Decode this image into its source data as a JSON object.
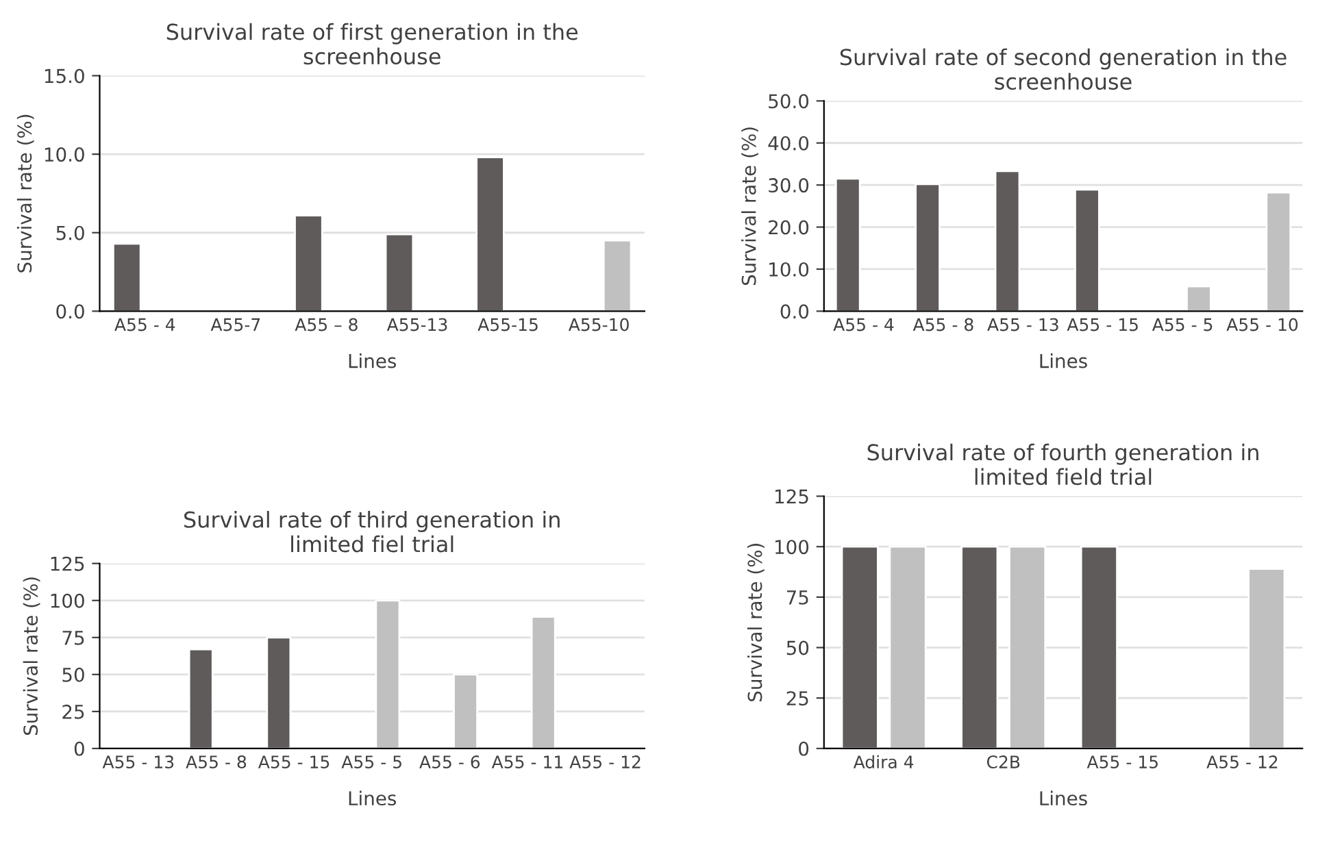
{
  "chart_data": [
    {
      "type": "bar",
      "title": "Survival rate of first generation in the\nscreenhouse",
      "xlabel": "Lines",
      "ylabel": "Survival rate (%)",
      "categories": [
        "A55 - 4",
        "A55-7",
        "A55 – 8",
        "A55-13",
        "A55-15",
        "A55-10"
      ],
      "series": [
        {
          "color": "#5f5b5b",
          "values": [
            4.3,
            null,
            6.1,
            4.9,
            9.8,
            null
          ]
        },
        {
          "color": "#c0c0c0",
          "values": [
            null,
            null,
            null,
            null,
            null,
            4.5
          ]
        }
      ],
      "ylim": [
        0,
        15
      ],
      "yticks": [
        {
          "value": 0,
          "label": "0.0"
        },
        {
          "value": 5,
          "label": "5.0"
        },
        {
          "value": 10,
          "label": "10.0"
        },
        {
          "value": 15,
          "label": "15.0"
        }
      ],
      "grid": "y"
    },
    {
      "type": "bar",
      "title": "Survival rate of second generation in the\nscreenhouse",
      "xlabel": "Lines",
      "ylabel": "Survival rate (%)",
      "categories": [
        "A55 - 4",
        "A55 - 8",
        "A55 - 13",
        "A55 - 15",
        "A55 - 5",
        "A55 - 10"
      ],
      "series": [
        {
          "color": "#5f5b5b",
          "values": [
            31.5,
            30.2,
            33.3,
            28.9,
            null,
            null
          ]
        },
        {
          "color": "#c0c0c0",
          "values": [
            null,
            null,
            null,
            null,
            5.9,
            28.2
          ]
        }
      ],
      "ylim": [
        0,
        50
      ],
      "yticks": [
        {
          "value": 0,
          "label": "0.0"
        },
        {
          "value": 10,
          "label": "10.0"
        },
        {
          "value": 20,
          "label": "20.0"
        },
        {
          "value": 30,
          "label": "30.0"
        },
        {
          "value": 40,
          "label": "40.0"
        },
        {
          "value": 50,
          "label": "50.0"
        }
      ],
      "grid": "y"
    },
    {
      "type": "bar",
      "title": "Survival rate of third generation in\nlimited fiel trial",
      "xlabel": "Lines",
      "ylabel": "Survival rate (%)",
      "categories": [
        "A55 - 13",
        "A55 - 8",
        "A55 - 15",
        "A55 - 5",
        "A55 - 6",
        "A55 - 11",
        "A55 - 12"
      ],
      "series": [
        {
          "color": "#5f5b5b",
          "values": [
            null,
            67,
            75,
            null,
            null,
            null,
            null
          ]
        },
        {
          "color": "#c0c0c0",
          "values": [
            null,
            null,
            null,
            100,
            50,
            89,
            null
          ]
        }
      ],
      "ylim": [
        0,
        125
      ],
      "yticks": [
        0,
        25,
        50,
        75,
        100,
        125
      ],
      "grid": "y"
    },
    {
      "type": "bar",
      "title": "Survival rate of fourth generation in\nlimited field trial",
      "xlabel": "Lines",
      "ylabel": "Survival rate (%)",
      "categories": [
        "Adira 4",
        "C2B",
        "A55 - 15",
        "A55 - 12"
      ],
      "series": [
        {
          "color": "#5f5b5b",
          "values": [
            100,
            100,
            100,
            null
          ]
        },
        {
          "color": "#c0c0c0",
          "values": [
            100,
            100,
            null,
            89
          ]
        }
      ],
      "ylim": [
        0,
        125
      ],
      "yticks": [
        0,
        25,
        50,
        75,
        100,
        125
      ],
      "grid": "y"
    }
  ]
}
